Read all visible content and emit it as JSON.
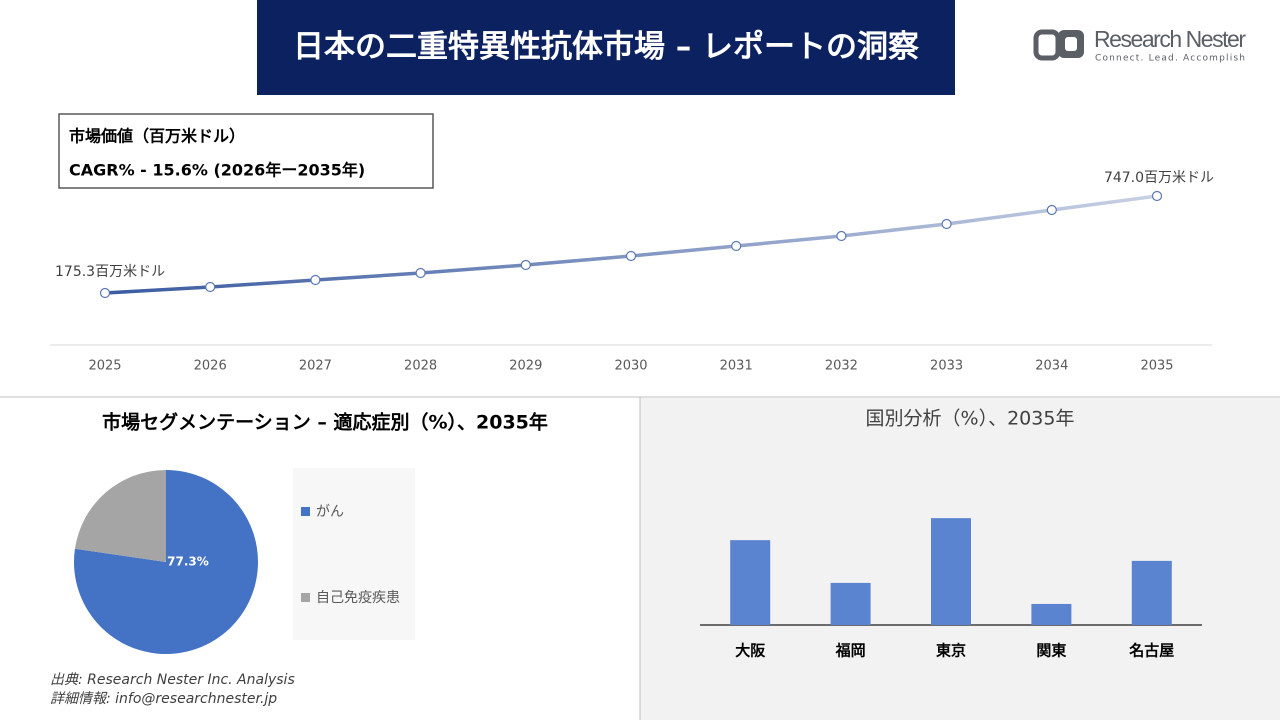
{
  "header": {
    "title": "日本の二重特異性抗体市場 – レポートの洞察",
    "logo_name": "Research Nester",
    "logo_tagline": "Connect. Lead. Accomplish"
  },
  "chart_data": [
    {
      "type": "line",
      "annotations": [
        "市場価値（百万米ドル）",
        "CAGR% - 15.6% (2026年ー2035年)"
      ],
      "categories": [
        "2025",
        "2026",
        "2027",
        "2028",
        "2029",
        "2030",
        "2031",
        "2032",
        "2033",
        "2034",
        "2035"
      ],
      "values": [
        175.3,
        210.7,
        251.9,
        293.2,
        340.3,
        393.4,
        452.3,
        511.2,
        582.0,
        664.5,
        747.0
      ],
      "value_labels": [
        "175.3百万米ドル",
        null,
        null,
        null,
        null,
        null,
        null,
        null,
        null,
        null,
        "747.0百万米ドル"
      ],
      "colors": [
        "#3a5ba0",
        "#c8d0e4"
      ]
    },
    {
      "type": "pie",
      "title": "市場セグメンテーション – 適応症別（%）、2035年",
      "categories": [
        "がん",
        "自己免疫疾患"
      ],
      "values": [
        77.3,
        22.7
      ],
      "value_labels": [
        "77.3%",
        null
      ],
      "colors": [
        "#4472c4",
        "#a5a5a5"
      ]
    },
    {
      "type": "bar",
      "title": "国別分析（%）、2035年",
      "categories": [
        "大阪",
        "福岡",
        "東京",
        "関東",
        "名古屋"
      ],
      "values": [
        26.6,
        13.2,
        33.5,
        6.6,
        20.1
      ],
      "color": "#5b84d0"
    }
  ],
  "footer": {
    "source": "出典: Research Nester Inc. Analysis",
    "contact": "詳細情報: info@researchnester.jp"
  }
}
